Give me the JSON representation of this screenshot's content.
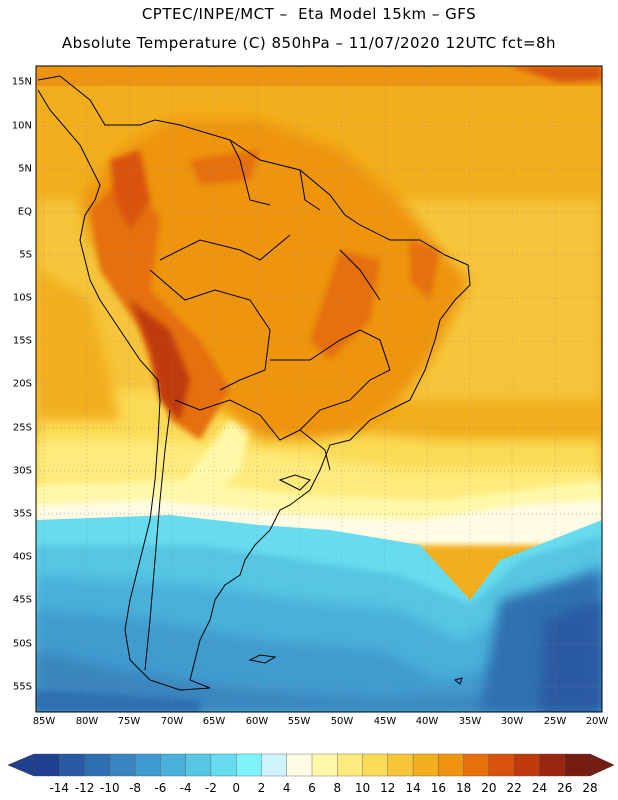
{
  "header": {
    "title_line1": "CPTEC/INPE/MCT –  Eta Model 15km – GFS",
    "title_line2": "Absolute Temperature (C) 850hPa – 11/07/2020 12UTC fct=8h"
  },
  "map": {
    "lat_labels": [
      "15N",
      "10N",
      "5N",
      "EQ",
      "5S",
      "10S",
      "15S",
      "20S",
      "25S",
      "30S",
      "35S",
      "40S",
      "45S",
      "50S",
      "55S"
    ],
    "lon_labels": [
      "85W",
      "80W",
      "75W",
      "70W",
      "65W",
      "60W",
      "55W",
      "50W",
      "45W",
      "40W",
      "35W",
      "30W",
      "25W",
      "20W"
    ],
    "lat_range": [
      16.5,
      -58
    ],
    "lon_range": [
      -85,
      -20
    ]
  },
  "colorbar": {
    "labels": [
      "-14",
      "-12",
      "-10",
      "-8",
      "-6",
      "-4",
      "-2",
      "0",
      "2",
      "4",
      "6",
      "8",
      "10",
      "12",
      "14",
      "16",
      "18",
      "20",
      "22",
      "24",
      "26",
      "28"
    ],
    "colors": [
      "#1f3f8f",
      "#2a5aa3",
      "#2f6fb0",
      "#3a85bf",
      "#3f9bcf",
      "#49b0da",
      "#56c6e3",
      "#66dcee",
      "#7ff3fb",
      "#cdf3fb",
      "#fffbe5",
      "#fff8a8",
      "#ffeb7d",
      "#fbdb57",
      "#f6c53a",
      "#f2ae1c",
      "#ee9410",
      "#e5700c",
      "#d9520d",
      "#bf3a0e",
      "#9a2610",
      "#761d11"
    ]
  }
}
